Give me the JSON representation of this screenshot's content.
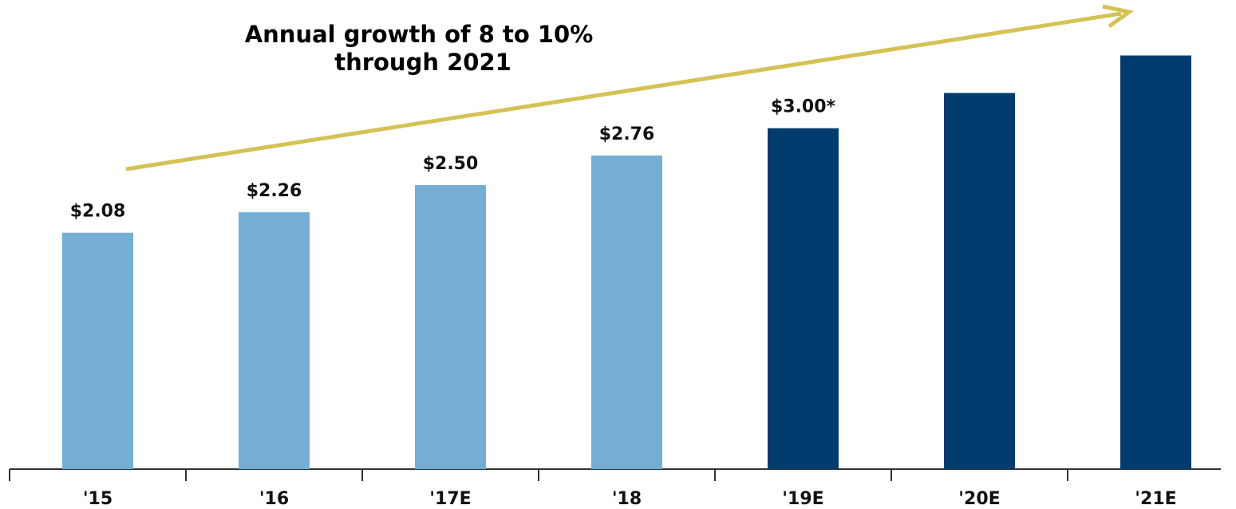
{
  "chart_data": {
    "type": "bar",
    "annotation": [
      "Annual growth of 8 to 10%",
      "through 2021"
    ],
    "categories": [
      "'15",
      "'16",
      "'17E",
      "'18",
      "'19E",
      "'20E",
      "'21E"
    ],
    "values": [
      2.08,
      2.26,
      2.5,
      2.76,
      3.0,
      3.31,
      3.64
    ],
    "value_labels": [
      "$2.08",
      "$2.26",
      "$2.50",
      "$2.76",
      "$3.00*",
      null,
      null
    ],
    "colors": [
      "#74aed4",
      "#74aed4",
      "#74aed4",
      "#74aed4",
      "#003d6e",
      "#003d6e",
      "#003d6e"
    ],
    "ylim": [
      0,
      3.7
    ]
  }
}
